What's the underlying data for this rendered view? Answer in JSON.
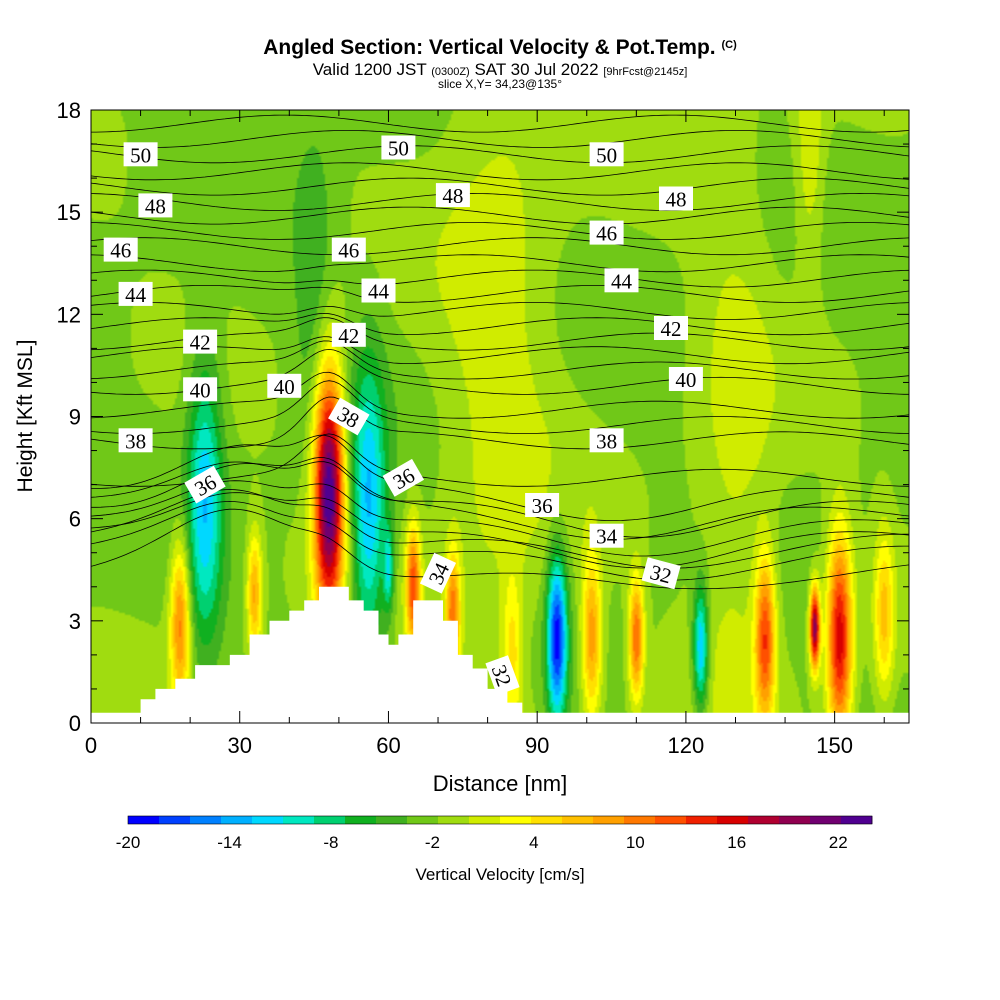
{
  "chart_data": {
    "type": "heatmap",
    "title": "Angled Section: Vertical Velocity & Pot.Temp.",
    "title_mark": "(C)",
    "subtitle_main": "Valid 1200 JST",
    "subtitle_utc": "(0300Z)",
    "subtitle_date": "SAT 30 Jul 2022",
    "subtitle_fcst": "[9hrFcst@2145z]",
    "slice_label": "slice X,Y= 34,23@135°",
    "xlabel": "Distance [nm]",
    "ylabel": "Height [Kft MSL]",
    "xlim": [
      0,
      165
    ],
    "ylim": [
      0,
      18
    ],
    "xticks": [
      "0",
      "30",
      "60",
      "90",
      "120",
      "150"
    ],
    "yticks": [
      "0",
      "3",
      "6",
      "9",
      "12",
      "15",
      "18"
    ],
    "colorbar": {
      "label": "Vertical Velocity [cm/s]",
      "range": [
        -20,
        24
      ],
      "ticks": [
        "-20",
        "-14",
        "-8",
        "-2",
        "4",
        "10",
        "16",
        "22"
      ],
      "colors": [
        "#0000ff",
        "#0040ff",
        "#0080ff",
        "#00b0ff",
        "#00d8ff",
        "#00e8c0",
        "#00d070",
        "#10b020",
        "#40b020",
        "#70c818",
        "#a0dc10",
        "#d0ec00",
        "#ffff00",
        "#ffe000",
        "#ffc000",
        "#ffa000",
        "#ff7800",
        "#ff5000",
        "#f02000",
        "#d80000",
        "#b00030",
        "#900050",
        "#700070",
        "#500090"
      ]
    },
    "background_velocity": -2,
    "velocity_cells": [
      {
        "x": 48,
        "y": 6.8,
        "w": 3.0,
        "peak": 24
      },
      {
        "x": 56,
        "y": 6.2,
        "w": 3.5,
        "peak": -13
      },
      {
        "x": 23,
        "y": 6.6,
        "w": 3.5,
        "peak": -12
      },
      {
        "x": 94,
        "y": 2.5,
        "w": 2.0,
        "peak": -19
      },
      {
        "x": 123,
        "y": 2.2,
        "w": 1.5,
        "peak": -14
      },
      {
        "x": 151,
        "y": 2.5,
        "w": 2.5,
        "peak": 16
      },
      {
        "x": 146,
        "y": 2.8,
        "w": 1.0,
        "peak": 20
      },
      {
        "x": 136,
        "y": 2.5,
        "w": 2.0,
        "peak": 12
      },
      {
        "x": 101,
        "y": 2.5,
        "w": 2.0,
        "peak": 9
      },
      {
        "x": 110,
        "y": 2.5,
        "w": 1.5,
        "peak": 11
      },
      {
        "x": 65,
        "y": 4.0,
        "w": 1.5,
        "peak": 12
      },
      {
        "x": 73,
        "y": 3.2,
        "w": 1.5,
        "peak": 10
      },
      {
        "x": 33,
        "y": 3.8,
        "w": 1.5,
        "peak": 8
      },
      {
        "x": 18,
        "y": 3.0,
        "w": 2.0,
        "peak": 10
      },
      {
        "x": 85,
        "y": 2.0,
        "w": 2.0,
        "peak": 4
      },
      {
        "x": 60,
        "y": 4.5,
        "w": 1.0,
        "peak": -10
      },
      {
        "x": 160,
        "y": 3.2,
        "w": 2.0,
        "peak": 6
      },
      {
        "x": 82,
        "y": 12.0,
        "w": 12.0,
        "peak": 1
      },
      {
        "x": 45,
        "y": 13.0,
        "w": 4.0,
        "peak": -5
      },
      {
        "x": 130,
        "y": 7.0,
        "w": 8.0,
        "peak": 1
      },
      {
        "x": 145,
        "y": 16.5,
        "w": 3.0,
        "peak": 2
      }
    ],
    "terrain": [
      [
        0,
        0.3
      ],
      [
        10,
        0.3
      ],
      [
        10,
        0.7
      ],
      [
        13,
        0.7
      ],
      [
        13,
        1.0
      ],
      [
        17,
        1.0
      ],
      [
        17,
        1.3
      ],
      [
        21,
        1.3
      ],
      [
        21,
        1.7
      ],
      [
        28,
        1.7
      ],
      [
        28,
        2.0
      ],
      [
        32,
        2.0
      ],
      [
        32,
        2.6
      ],
      [
        36,
        2.6
      ],
      [
        36,
        3.0
      ],
      [
        40,
        3.0
      ],
      [
        40,
        3.3
      ],
      [
        43,
        3.3
      ],
      [
        43,
        3.6
      ],
      [
        46,
        3.6
      ],
      [
        46,
        4.0
      ],
      [
        52,
        4.0
      ],
      [
        52,
        3.6
      ],
      [
        55,
        3.6
      ],
      [
        55,
        3.3
      ],
      [
        58,
        3.3
      ],
      [
        58,
        2.6
      ],
      [
        60,
        2.6
      ],
      [
        60,
        2.3
      ],
      [
        62,
        2.3
      ],
      [
        62,
        2.6
      ],
      [
        65,
        2.6
      ],
      [
        65,
        3.6
      ],
      [
        71,
        3.6
      ],
      [
        71,
        3.0
      ],
      [
        74,
        3.0
      ],
      [
        74,
        2.0
      ],
      [
        77,
        2.0
      ],
      [
        77,
        1.6
      ],
      [
        80,
        1.6
      ],
      [
        80,
        1.0
      ],
      [
        84,
        1.0
      ],
      [
        84,
        0.6
      ],
      [
        87,
        0.6
      ],
      [
        87,
        0.3
      ],
      [
        165,
        0.3
      ]
    ],
    "contour_levels": [
      "32",
      "34",
      "36",
      "38",
      "40",
      "42",
      "44",
      "46",
      "48",
      "50"
    ],
    "contour_labels": [
      {
        "text": "50",
        "x": 10,
        "y": 16.7,
        "angle": 0
      },
      {
        "text": "50",
        "x": 62,
        "y": 16.9,
        "angle": 0
      },
      {
        "text": "50",
        "x": 104,
        "y": 16.7,
        "angle": 0
      },
      {
        "text": "48",
        "x": 13,
        "y": 15.2,
        "angle": 0
      },
      {
        "text": "48",
        "x": 73,
        "y": 15.5,
        "angle": 0
      },
      {
        "text": "48",
        "x": 118,
        "y": 15.4,
        "angle": 0
      },
      {
        "text": "46",
        "x": 6,
        "y": 13.9,
        "angle": 0
      },
      {
        "text": "46",
        "x": 52,
        "y": 13.9,
        "angle": 0
      },
      {
        "text": "46",
        "x": 104,
        "y": 14.4,
        "angle": 0
      },
      {
        "text": "44",
        "x": 9,
        "y": 12.6,
        "angle": 0
      },
      {
        "text": "44",
        "x": 58,
        "y": 12.7,
        "angle": 0
      },
      {
        "text": "44",
        "x": 107,
        "y": 13.0,
        "angle": 0
      },
      {
        "text": "42",
        "x": 22,
        "y": 11.2,
        "angle": 0
      },
      {
        "text": "42",
        "x": 52,
        "y": 11.4,
        "angle": 0
      },
      {
        "text": "42",
        "x": 117,
        "y": 11.6,
        "angle": 0
      },
      {
        "text": "40",
        "x": 22,
        "y": 9.8,
        "angle": 0
      },
      {
        "text": "40",
        "x": 39,
        "y": 9.9,
        "angle": 0
      },
      {
        "text": "40",
        "x": 120,
        "y": 10.1,
        "angle": 0
      },
      {
        "text": "38",
        "x": 9,
        "y": 8.3,
        "angle": 0
      },
      {
        "text": "38",
        "x": 52,
        "y": 9.0,
        "angle": 30
      },
      {
        "text": "38",
        "x": 104,
        "y": 8.3,
        "angle": 0
      },
      {
        "text": "36",
        "x": 23,
        "y": 7.0,
        "angle": -30
      },
      {
        "text": "36",
        "x": 63,
        "y": 7.2,
        "angle": -30
      },
      {
        "text": "36",
        "x": 91,
        "y": 6.4,
        "angle": 0
      },
      {
        "text": "34",
        "x": 104,
        "y": 5.5,
        "angle": 0
      },
      {
        "text": "34",
        "x": 70,
        "y": 4.4,
        "angle": -65
      },
      {
        "text": "32",
        "x": 115,
        "y": 4.4,
        "angle": 15
      },
      {
        "text": "32",
        "x": 83,
        "y": 1.4,
        "angle": 70
      }
    ]
  }
}
